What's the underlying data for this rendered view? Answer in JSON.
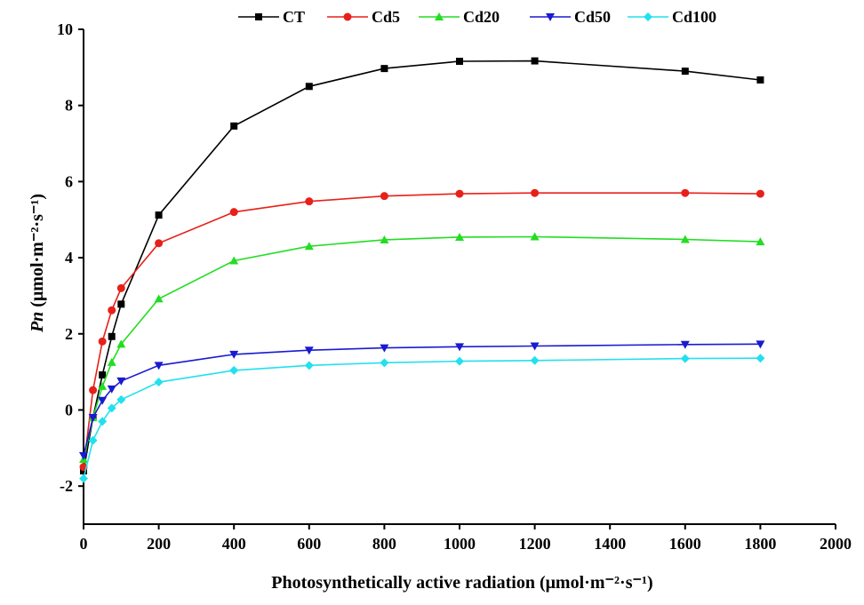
{
  "chart_data": {
    "type": "line",
    "xlabel": "Photosynthetically active radiation (μmol·m⁻²·s⁻¹)",
    "ylabel_italic": "Pn",
    "ylabel_rest": " (μmol·m⁻²·s⁻¹)",
    "xlim": [
      0,
      2000
    ],
    "ylim": [
      -3,
      10
    ],
    "x_ticks": [
      "0",
      "200",
      "400",
      "600",
      "800",
      "1000",
      "1200",
      "1400",
      "1600",
      "1800",
      "2000"
    ],
    "y_ticks": [
      "-2",
      "0",
      "2",
      "4",
      "6",
      "8",
      "10"
    ],
    "grid": false,
    "legend_position": "top",
    "x": [
      0,
      25,
      50,
      75,
      100,
      200,
      400,
      600,
      800,
      1000,
      1200,
      1600,
      1800
    ],
    "series": [
      {
        "name": "CT",
        "color": "#000000",
        "marker": "square",
        "values": [
          -1.6,
          -0.2,
          0.92,
          1.93,
          2.78,
          5.12,
          7.46,
          8.5,
          8.97,
          9.16,
          9.17,
          8.9,
          8.67
        ]
      },
      {
        "name": "Cd5",
        "color": "#e8201a",
        "marker": "circle",
        "values": [
          -1.5,
          0.52,
          1.8,
          2.62,
          3.2,
          4.38,
          5.2,
          5.48,
          5.62,
          5.68,
          5.7,
          5.7,
          5.68
        ]
      },
      {
        "name": "Cd20",
        "color": "#22dd22",
        "marker": "triangle-up",
        "values": [
          -1.3,
          -0.2,
          0.62,
          1.25,
          1.73,
          2.92,
          3.92,
          4.3,
          4.47,
          4.54,
          4.55,
          4.48,
          4.42
        ]
      },
      {
        "name": "Cd50",
        "color": "#1a1ad0",
        "marker": "triangle-down",
        "values": [
          -1.2,
          -0.2,
          0.25,
          0.55,
          0.76,
          1.17,
          1.46,
          1.57,
          1.63,
          1.66,
          1.68,
          1.72,
          1.73
        ]
      },
      {
        "name": "Cd100",
        "color": "#22e0ee",
        "marker": "diamond",
        "values": [
          -1.8,
          -0.8,
          -0.3,
          0.05,
          0.27,
          0.73,
          1.04,
          1.17,
          1.24,
          1.28,
          1.3,
          1.35,
          1.36
        ]
      }
    ]
  }
}
